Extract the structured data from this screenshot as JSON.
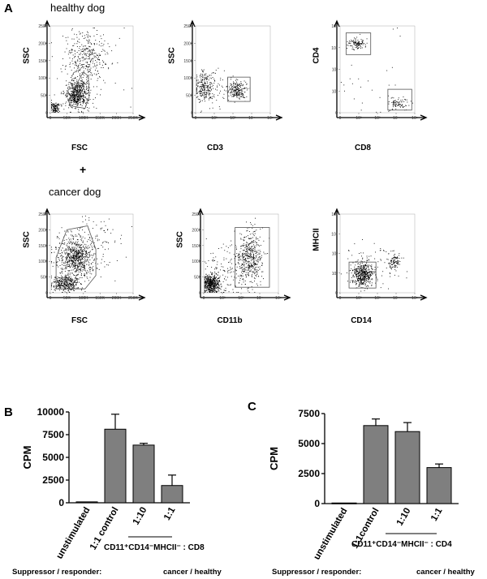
{
  "panels": {
    "A": "A",
    "B": "B",
    "C": "C"
  },
  "groups": {
    "healthy": "healthy dog",
    "cancer": "cancer dog",
    "plus": "+"
  },
  "flow": [
    {
      "id": "h1",
      "xlabel": "FSC",
      "ylabel": "SSC",
      "type": "lin",
      "xticks": [
        "0",
        "50K",
        "100K",
        "150K",
        "200K",
        "250K"
      ],
      "yticks": [
        "0",
        "50K",
        "100K",
        "150K",
        "200K",
        "250K"
      ]
    },
    {
      "id": "h2",
      "xlabel": "CD3",
      "ylabel": "SSC",
      "type": "loglin",
      "xticks": [
        "0",
        "10²",
        "10³",
        "10⁴",
        "10⁵"
      ],
      "yticks": [
        "0",
        "50K",
        "100K",
        "150K",
        "200K",
        "250K"
      ]
    },
    {
      "id": "h3",
      "xlabel": "CD8",
      "ylabel": "CD4",
      "type": "log",
      "xticks": [
        "0",
        "10²",
        "10³",
        "10⁴",
        "10⁵"
      ],
      "yticks": [
        "0",
        "10²",
        "10³",
        "10⁴",
        "10⁵"
      ]
    },
    {
      "id": "c1",
      "xlabel": "FSC",
      "ylabel": "SSC",
      "type": "lin",
      "xticks": [
        "0",
        "50K",
        "100K",
        "150K",
        "200K",
        "250K"
      ],
      "yticks": [
        "0",
        "50K",
        "100K",
        "150K",
        "200K",
        "250K"
      ]
    },
    {
      "id": "c2",
      "xlabel": "CD11b",
      "ylabel": "SSC",
      "type": "loglin",
      "xticks": [
        "0",
        "10²",
        "10³",
        "10⁴",
        "10⁵"
      ],
      "yticks": [
        "0",
        "50K",
        "100K",
        "150K",
        "200K",
        "250K"
      ]
    },
    {
      "id": "c3",
      "xlabel": "CD14",
      "ylabel": "MHCII",
      "type": "log",
      "xticks": [
        "0",
        "10²",
        "10³",
        "10⁴",
        "10⁵"
      ],
      "yticks": [
        "0",
        "10²",
        "10³",
        "10⁴",
        "10⁵"
      ]
    }
  ],
  "chart_data": [
    {
      "type": "bar",
      "panel": "B",
      "ylabel": "CPM",
      "ylim": [
        0,
        10000
      ],
      "yticks": [
        "0",
        "2500",
        "5000",
        "7500",
        "10000"
      ],
      "categories": [
        "unstimulated",
        "1:1 control",
        "1:10",
        "1:1"
      ],
      "values": [
        100,
        8100,
        6350,
        1900
      ],
      "errors": [
        50,
        1650,
        200,
        1150
      ],
      "bar_color": "#7f7f7f",
      "group_label": "CD11⁺CD14⁻MHCII⁻ : CD8",
      "footer": {
        "left": "Suppressor / responder:",
        "right": "cancer / healthy"
      }
    },
    {
      "type": "bar",
      "panel": "C",
      "ylabel": "CPM",
      "ylim": [
        0,
        7500
      ],
      "yticks": [
        "0",
        "2500",
        "5000",
        "7500"
      ],
      "categories": [
        "unstimulated",
        "1:1control",
        "1:10",
        "1:1"
      ],
      "values": [
        50,
        6500,
        6000,
        3000
      ],
      "errors": [
        20,
        550,
        750,
        300
      ],
      "bar_color": "#7f7f7f",
      "group_label": "CD11⁺CD14⁻MHCII⁻ : CD4",
      "footer": {
        "left": "Suppressor / responder:",
        "right": "cancer / healthy"
      }
    }
  ]
}
